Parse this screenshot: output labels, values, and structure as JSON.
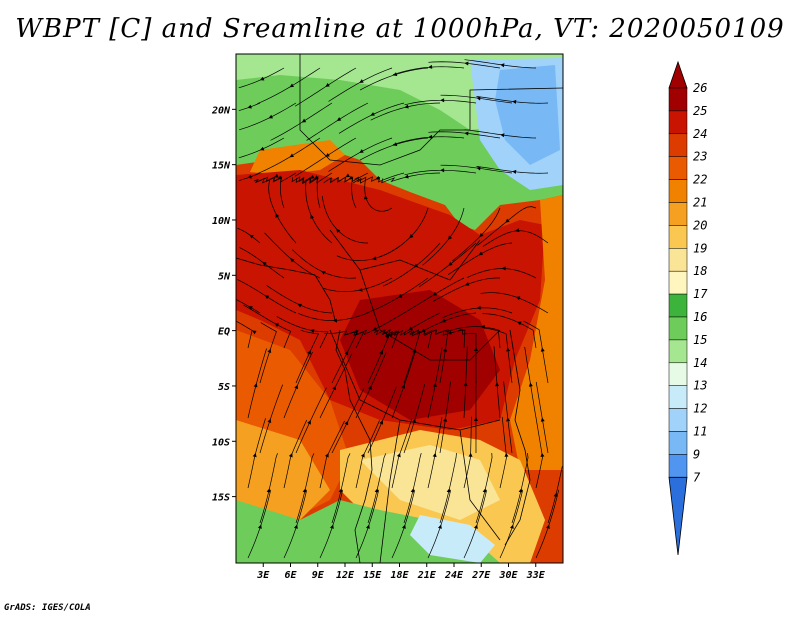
{
  "title": "WBPT [C] and Sreamline at 1000hPa, VT: 2020050109",
  "footer": "GrADS: IGES/COLA",
  "map": {
    "lon_range": [
      0,
      36
    ],
    "lat_range": [
      -21,
      25
    ],
    "lon_ticks": [
      "3E",
      "6E",
      "9E",
      "12E",
      "15E",
      "18E",
      "21E",
      "24E",
      "27E",
      "30E",
      "33E"
    ],
    "lon_tick_values": [
      3,
      6,
      9,
      12,
      15,
      18,
      21,
      24,
      27,
      30,
      33
    ],
    "lat_ticks": [
      "20N",
      "15N",
      "10N",
      "5N",
      "EQ",
      "5S",
      "10S",
      "15S"
    ],
    "lat_tick_values": [
      20,
      15,
      10,
      5,
      0,
      -5,
      -10,
      -15
    ],
    "variable": "Wet-bulb potential temperature",
    "units": "C",
    "level": "1000hPa",
    "valid_time": "2020050109"
  },
  "colorbar": {
    "labels": [
      "26",
      "25",
      "24",
      "23",
      "22",
      "21",
      "20",
      "19",
      "18",
      "17",
      "16",
      "15",
      "14",
      "13",
      "12",
      "11",
      "9",
      "7"
    ],
    "colors": [
      "#a00000",
      "#c81400",
      "#dc3c00",
      "#ea5a00",
      "#f08200",
      "#f5a020",
      "#fac850",
      "#fae496",
      "#fff5be",
      "#3cb43c",
      "#6ecd5a",
      "#a5e691",
      "#e6fae6",
      "#c8ebfa",
      "#a0d2fa",
      "#78b9f5",
      "#5096f0",
      "#2a6fdb"
    ]
  }
}
